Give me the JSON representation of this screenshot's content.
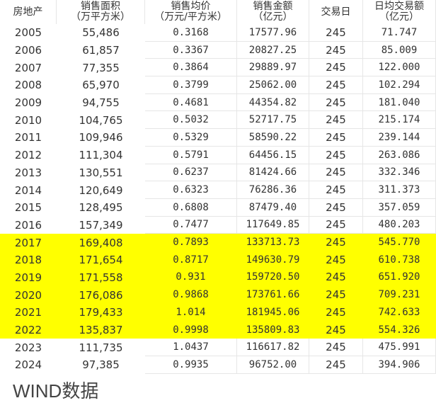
{
  "headers": [
    {
      "line1": "房地产",
      "line2": ""
    },
    {
      "line1": "销售面积",
      "line2": "（万平方米）"
    },
    {
      "line1": "销售均价",
      "line2": "（万元/平方米）"
    },
    {
      "line1": "销售金额",
      "line2": "（亿元）"
    },
    {
      "line1": "交易日",
      "line2": ""
    },
    {
      "line1": "日均交易额",
      "line2": "（亿元）"
    }
  ],
  "highlight_color": "#ffff00",
  "rows": [
    {
      "year": "2005",
      "area": "55,486",
      "price": "0.3168",
      "amount": "17577.96",
      "days": "245",
      "daily": "71.747",
      "highlighted": false
    },
    {
      "year": "2006",
      "area": "61,857",
      "price": "0.3367",
      "amount": "20827.25",
      "days": "245",
      "daily": "85.009",
      "highlighted": false
    },
    {
      "year": "2007",
      "area": "77,355",
      "price": "0.3864",
      "amount": "29889.97",
      "days": "245",
      "daily": "122.000",
      "highlighted": false
    },
    {
      "year": "2008",
      "area": "65,970",
      "price": "0.3799",
      "amount": "25062.00",
      "days": "245",
      "daily": "102.294",
      "highlighted": false
    },
    {
      "year": "2009",
      "area": "94,755",
      "price": "0.4681",
      "amount": "44354.82",
      "days": "245",
      "daily": "181.040",
      "highlighted": false
    },
    {
      "year": "2010",
      "area": "104,765",
      "price": "0.5032",
      "amount": "52717.75",
      "days": "245",
      "daily": "215.174",
      "highlighted": false
    },
    {
      "year": "2011",
      "area": "109,946",
      "price": "0.5329",
      "amount": "58590.22",
      "days": "245",
      "daily": "239.144",
      "highlighted": false
    },
    {
      "year": "2012",
      "area": "111,304",
      "price": "0.5791",
      "amount": "64456.15",
      "days": "245",
      "daily": "263.086",
      "highlighted": false
    },
    {
      "year": "2013",
      "area": "130,551",
      "price": "0.6237",
      "amount": "81424.66",
      "days": "245",
      "daily": "332.346",
      "highlighted": false
    },
    {
      "year": "2014",
      "area": "120,649",
      "price": "0.6323",
      "amount": "76286.36",
      "days": "245",
      "daily": "311.373",
      "highlighted": false
    },
    {
      "year": "2015",
      "area": "128,495",
      "price": "0.6808",
      "amount": "87479.40",
      "days": "245",
      "daily": "357.059",
      "highlighted": false
    },
    {
      "year": "2016",
      "area": "157,349",
      "price": "0.7477",
      "amount": "117649.85",
      "days": "245",
      "daily": "480.203",
      "highlighted": false
    },
    {
      "year": "2017",
      "area": "169,408",
      "price": "0.7893",
      "amount": "133713.73",
      "days": "245",
      "daily": "545.770",
      "highlighted": true
    },
    {
      "year": "2018",
      "area": "171,654",
      "price": "0.8717",
      "amount": "149630.79",
      "days": "245",
      "daily": "610.738",
      "highlighted": true
    },
    {
      "year": "2019",
      "area": "171,558",
      "price": "0.931",
      "amount": "159720.50",
      "days": "245",
      "daily": "651.920",
      "highlighted": true
    },
    {
      "year": "2020",
      "area": "176,086",
      "price": "0.9868",
      "amount": "173761.66",
      "days": "245",
      "daily": "709.231",
      "highlighted": true
    },
    {
      "year": "2021",
      "area": "179,433",
      "price": "1.014",
      "amount": "181945.06",
      "days": "245",
      "daily": "742.633",
      "highlighted": true
    },
    {
      "year": "2022",
      "area": "135,837",
      "price": "0.9998",
      "amount": "135809.83",
      "days": "245",
      "daily": "554.326",
      "highlighted": true
    },
    {
      "year": "2023",
      "area": "111,735",
      "price": "1.0437",
      "amount": "116617.82",
      "days": "245",
      "daily": "475.991",
      "highlighted": false
    },
    {
      "year": "2024",
      "area": "97,385",
      "price": "0.9935",
      "amount": "96752.00",
      "days": "245",
      "daily": "394.906",
      "highlighted": false
    }
  ],
  "footer": "WIND数据"
}
